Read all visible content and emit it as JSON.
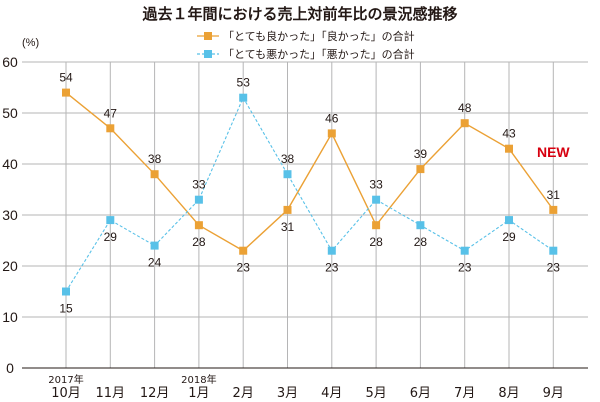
{
  "chart_data": {
    "type": "line",
    "title": "過去１年間における売上対前年比の景況感推移",
    "ylabel": "(%)",
    "xlabel": "",
    "ylim": [
      0,
      60
    ],
    "yticks": [
      0,
      10,
      20,
      30,
      40,
      50,
      60
    ],
    "grid": true,
    "legend_position": "top-center",
    "categories": [
      "10月",
      "11月",
      "12月",
      "1月",
      "2月",
      "3月",
      "4月",
      "5月",
      "6月",
      "7月",
      "8月",
      "9月"
    ],
    "year_labels": [
      {
        "category_index": 0,
        "text": "2017年"
      },
      {
        "category_index": 3,
        "text": "2018年"
      }
    ],
    "series": [
      {
        "name": "「とても良かった」「良かった」の合計",
        "color": "#eba135",
        "line_style": "solid",
        "marker": "square",
        "values": [
          54,
          47,
          38,
          28,
          23,
          31,
          46,
          28,
          39,
          48,
          43,
          31
        ]
      },
      {
        "name": "「とても悪かった」「悪かった」の合計",
        "color": "#58c1e8",
        "line_style": "dashed",
        "marker": "square",
        "values": [
          15,
          29,
          24,
          33,
          53,
          38,
          23,
          33,
          28,
          23,
          29,
          23
        ]
      }
    ],
    "annotations": [
      {
        "text": "NEW",
        "color": "#d7000f",
        "category_index": 11
      }
    ]
  }
}
